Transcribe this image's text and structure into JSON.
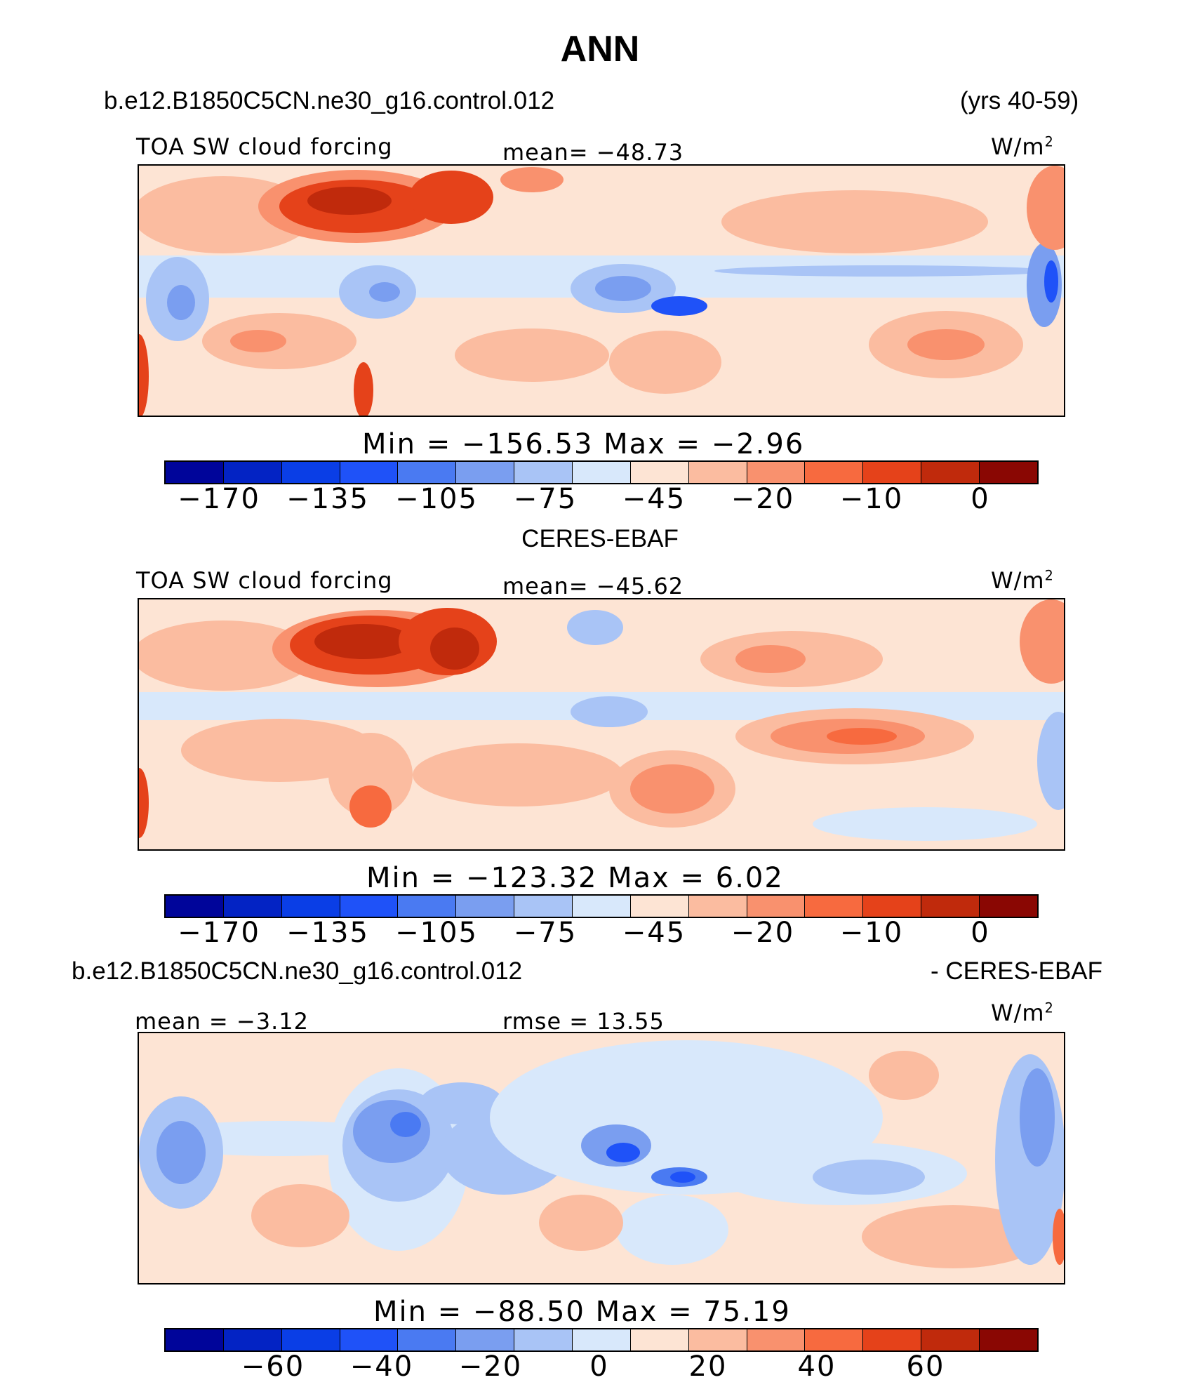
{
  "title": "ANN",
  "top_case": {
    "name": "b.e12.B1850C5CN.ne30_g16.control.012",
    "years": "(yrs 40-59)"
  },
  "panels": [
    {
      "variable": "TOA SW cloud forcing",
      "mean_text": "mean=  −48.73",
      "units": "W/m",
      "units_exp": "2",
      "minmax": "Min  =  −156.53  Max  =    −2.96",
      "ticks": [
        "−170",
        "−135",
        "−105",
        "−75",
        "−45",
        "−20",
        "−10",
        "0"
      ]
    },
    {
      "header": "CERES-EBAF",
      "variable": "TOA SW cloud forcing",
      "mean_text": "mean=  −45.62",
      "units": "W/m",
      "units_exp": "2",
      "minmax": "Min  =  −123.32  Max  =      6.02",
      "ticks": [
        "−170",
        "−135",
        "−105",
        "−75",
        "−45",
        "−20",
        "−10",
        "0"
      ]
    },
    {
      "header_left": "b.e12.B1850C5CN.ne30_g16.control.012",
      "header_right": "- CERES-EBAF",
      "mean_text": "mean  =    −3.12",
      "rmse_text": "rmse  =    13.55",
      "units": "W/m",
      "units_exp": "2",
      "minmax": "Min  =  −88.50  Max  =    75.19",
      "ticks": [
        "−60",
        "−40",
        "−20",
        "0",
        "20",
        "40",
        "60"
      ]
    }
  ],
  "colorbar_colors": [
    "#00059a",
    "#0323c4",
    "#0a3ee6",
    "#1f52f8",
    "#4a7af2",
    "#7a9ef0",
    "#a9c4f6",
    "#d8e8fb",
    "#fde4d4",
    "#fbbca0",
    "#f9916e",
    "#f76a3f",
    "#e5421a",
    "#c02a0c",
    "#8a0703"
  ],
  "map_palette": {
    "blue_dark": "#1f52f8",
    "blue_mid": "#7a9ef0",
    "blue_light": "#d8e8fb",
    "peach": "#fde4d4",
    "salmon": "#fbbca0",
    "orange": "#f9916e",
    "red": "#e5421a",
    "dark_red": "#c02a0c"
  }
}
